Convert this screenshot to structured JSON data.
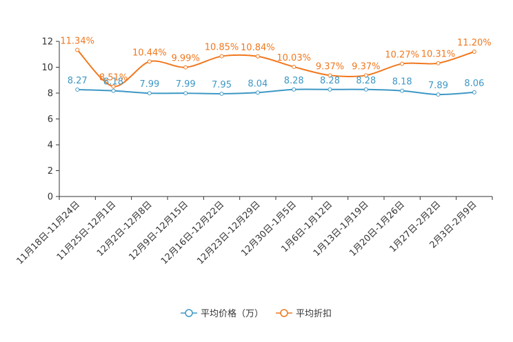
{
  "chart_data": {
    "type": "line",
    "title": "",
    "xlabel": "",
    "ylabel": "",
    "ylim": [
      0,
      12
    ],
    "yticks": [
      0,
      2,
      4,
      6,
      8,
      10,
      12
    ],
    "grid": false,
    "legend_position": "bottom-center",
    "categories": [
      "11月18日-11月24日",
      "11月25日-12月1日",
      "12月2日-12月8日",
      "12月9日-12月15日",
      "12月16日-12月22日",
      "12月23日-12月29日",
      "12月30日-1月5日",
      "1月6日-1月12日",
      "1月13日-1月19日",
      "1月20日-1月26日",
      "1月27日-2月2日",
      "2月3日-2月9日"
    ],
    "series": [
      {
        "name": "平均价格（万）",
        "color": "#3c97c5",
        "values": [
          8.27,
          8.18,
          7.99,
          7.99,
          7.95,
          8.04,
          8.28,
          8.28,
          8.28,
          8.18,
          7.89,
          8.06
        ],
        "labels": [
          "8.27",
          "8.18",
          "7.99",
          "7.99",
          "7.95",
          "8.04",
          "8.28",
          "8.28",
          "8.28",
          "8.18",
          "7.89",
          "8.06"
        ]
      },
      {
        "name": "平均折扣",
        "color": "#f0771d",
        "values": [
          11.34,
          8.51,
          10.44,
          9.99,
          10.85,
          10.84,
          10.03,
          9.37,
          9.37,
          10.27,
          10.31,
          11.2
        ],
        "labels": [
          "11.34%",
          "8.51%",
          "10.44%",
          "9.99%",
          "10.85%",
          "10.84%",
          "10.03%",
          "9.37%",
          "9.37%",
          "10.27%",
          "10.31%",
          "11.20%"
        ]
      }
    ]
  }
}
